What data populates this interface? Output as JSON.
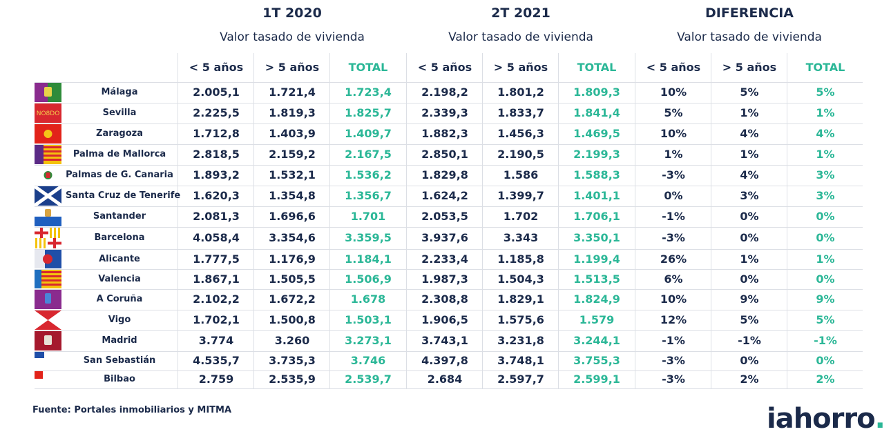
{
  "chart_data": {
    "type": "table",
    "groups": [
      {
        "title": "1T 2020",
        "subtitle": "Valor tasado de vivienda"
      },
      {
        "title": "2T 2021",
        "subtitle": "Valor tasado de vivienda"
      },
      {
        "title": "DIFERENCIA",
        "subtitle": "Valor tasado de vivienda"
      }
    ],
    "columns": [
      "< 5 años",
      "> 5 años",
      "TOTAL",
      "< 5 años",
      "> 5 años",
      "TOTAL",
      "< 5 años",
      "> 5 años",
      "TOTAL"
    ],
    "rows": [
      {
        "city": "Málaga",
        "values": [
          "2.005,1",
          "1.721,4",
          "1.723,4",
          "2.198,2",
          "1.801,2",
          "1.809,3",
          "10%",
          "5%",
          "5%"
        ]
      },
      {
        "city": "Sevilla",
        "values": [
          "2.225,5",
          "1.819,3",
          "1.825,7",
          "2.339,3",
          "1.833,7",
          "1.841,4",
          "5%",
          "1%",
          "1%"
        ]
      },
      {
        "city": "Zaragoza",
        "values": [
          "1.712,8",
          "1.403,9",
          "1.409,7",
          "1.882,3",
          "1.456,3",
          "1.469,5",
          "10%",
          "4%",
          "4%"
        ]
      },
      {
        "city": "Palma de Mallorca",
        "values": [
          "2.818,5",
          "2.159,2",
          "2.167,5",
          "2.850,1",
          "2.190,5",
          "2.199,3",
          "1%",
          "1%",
          "1%"
        ]
      },
      {
        "city": "Palmas de G. Canaria",
        "values": [
          "1.893,2",
          "1.532,1",
          "1.536,2",
          "1.829,8",
          "1.586",
          "1.588,3",
          "-3%",
          "4%",
          "3%"
        ]
      },
      {
        "city": "Santa Cruz de Tenerife",
        "values": [
          "1.620,3",
          "1.354,8",
          "1.356,7",
          "1.624,2",
          "1.399,7",
          "1.401,1",
          "0%",
          "3%",
          "3%"
        ]
      },
      {
        "city": "Santander",
        "values": [
          "2.081,3",
          "1.696,6",
          "1.701",
          "2.053,5",
          "1.702",
          "1.706,1",
          "-1%",
          "0%",
          "0%"
        ]
      },
      {
        "city": "Barcelona",
        "values": [
          "4.058,4",
          "3.354,6",
          "3.359,5",
          "3.937,6",
          "3.343",
          "3.350,1",
          "-3%",
          "0%",
          "0%"
        ]
      },
      {
        "city": "Alicante",
        "values": [
          "1.777,5",
          "1.176,9",
          "1.184,1",
          "2.233,4",
          "1.185,8",
          "1.199,4",
          "26%",
          "1%",
          "1%"
        ]
      },
      {
        "city": "Valencia",
        "values": [
          "1.867,1",
          "1.505,5",
          "1.506,9",
          "1.987,3",
          "1.504,3",
          "1.513,5",
          "6%",
          "0%",
          "0%"
        ]
      },
      {
        "city": "A Coruña",
        "values": [
          "2.102,2",
          "1.672,2",
          "1.678",
          "2.308,8",
          "1.829,1",
          "1.824,9",
          "10%",
          "9%",
          "9%"
        ]
      },
      {
        "city": "Vigo",
        "values": [
          "1.702,1",
          "1.500,8",
          "1.503,1",
          "1.906,5",
          "1.575,6",
          "1.579",
          "12%",
          "5%",
          "5%"
        ]
      },
      {
        "city": "Madrid",
        "values": [
          "3.774",
          "3.260",
          "3.273,1",
          "3.743,1",
          "3.231,8",
          "3.244,1",
          "-1%",
          "-1%",
          "-1%"
        ]
      },
      {
        "city": "San Sebastián",
        "values": [
          "4.535,7",
          "3.735,3",
          "3.746",
          "4.397,8",
          "3.748,1",
          "3.755,3",
          "-3%",
          "0%",
          "0%"
        ]
      },
      {
        "city": "Bilbao",
        "values": [
          "2.759",
          "2.535,9",
          "2.539,7",
          "2.684",
          "2.597,7",
          "2.599,1",
          "-3%",
          "2%",
          "2%"
        ]
      }
    ]
  },
  "footer": {
    "source": "Fuente: Portales inmobiliarios y MITMA",
    "logo": "iahorro",
    "logo_dot": "."
  },
  "colors": {
    "text": "#1b2a4a",
    "accent": "#2bb797",
    "separator": "#dcdfe5"
  },
  "flags": [
    "malaga-flag",
    "sevilla-flag",
    "zaragoza-flag",
    "palma-flag",
    "las-palmas-flag",
    "tenerife-flag",
    "santander-flag",
    "barcelona-flag",
    "alicante-flag",
    "valencia-flag",
    "a-coruna-flag",
    "vigo-flag",
    "madrid-flag",
    "san-sebastian-flag",
    "bilbao-flag"
  ]
}
